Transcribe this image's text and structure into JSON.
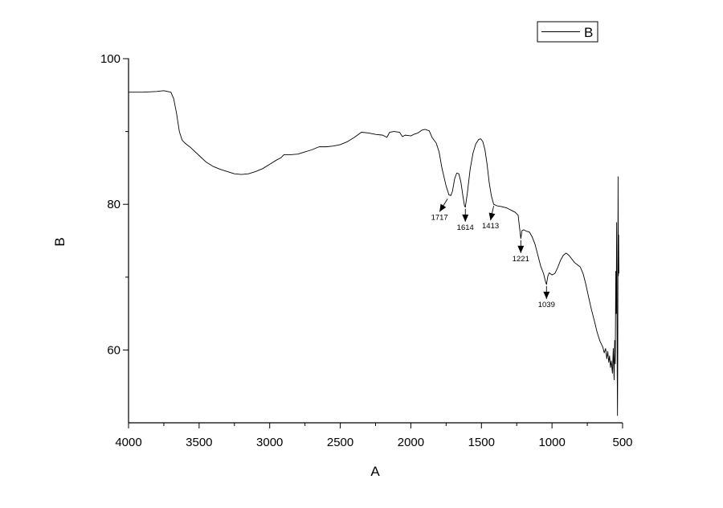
{
  "chart_data": {
    "type": "line",
    "title": "",
    "xlabel": "A",
    "ylabel": "B",
    "xlim": [
      4000,
      500
    ],
    "ylim": [
      50,
      100
    ],
    "x_reversed": true,
    "grid": false,
    "legend_position": "top-right",
    "x_ticks": [
      4000,
      3500,
      3000,
      2500,
      2000,
      1500,
      1000,
      500
    ],
    "y_ticks": [
      60,
      80,
      100
    ],
    "series": [
      {
        "name": "B",
        "color": "#000000",
        "points": [
          [
            4000,
            95.4
          ],
          [
            3900,
            95.4
          ],
          [
            3800,
            95.5
          ],
          [
            3750,
            95.6
          ],
          [
            3700,
            95.4
          ],
          [
            3680,
            94.5
          ],
          [
            3660,
            92.5
          ],
          [
            3640,
            90.0
          ],
          [
            3620,
            88.8
          ],
          [
            3600,
            88.4
          ],
          [
            3560,
            87.8
          ],
          [
            3500,
            86.7
          ],
          [
            3450,
            85.8
          ],
          [
            3400,
            85.2
          ],
          [
            3350,
            84.8
          ],
          [
            3300,
            84.5
          ],
          [
            3250,
            84.2
          ],
          [
            3200,
            84.1
          ],
          [
            3150,
            84.2
          ],
          [
            3100,
            84.5
          ],
          [
            3050,
            84.9
          ],
          [
            3000,
            85.5
          ],
          [
            2950,
            86.1
          ],
          [
            2920,
            86.4
          ],
          [
            2900,
            86.8
          ],
          [
            2860,
            86.8
          ],
          [
            2800,
            86.9
          ],
          [
            2750,
            87.2
          ],
          [
            2700,
            87.5
          ],
          [
            2650,
            87.9
          ],
          [
            2600,
            87.9
          ],
          [
            2550,
            88.0
          ],
          [
            2500,
            88.2
          ],
          [
            2450,
            88.6
          ],
          [
            2400,
            89.2
          ],
          [
            2350,
            89.9
          ],
          [
            2300,
            89.8
          ],
          [
            2250,
            89.6
          ],
          [
            2200,
            89.5
          ],
          [
            2170,
            89.2
          ],
          [
            2150,
            89.9
          ],
          [
            2120,
            90.0
          ],
          [
            2080,
            89.9
          ],
          [
            2060,
            89.3
          ],
          [
            2040,
            89.5
          ],
          [
            2000,
            89.4
          ],
          [
            1980,
            89.6
          ],
          [
            1950,
            89.8
          ],
          [
            1920,
            90.2
          ],
          [
            1900,
            90.3
          ],
          [
            1870,
            90.1
          ],
          [
            1850,
            89.2
          ],
          [
            1820,
            88.4
          ],
          [
            1800,
            87.2
          ],
          [
            1780,
            85.0
          ],
          [
            1750,
            82.5
          ],
          [
            1730,
            81.3
          ],
          [
            1717,
            81.2
          ],
          [
            1705,
            81.8
          ],
          [
            1690,
            83.5
          ],
          [
            1675,
            84.3
          ],
          [
            1660,
            84.2
          ],
          [
            1645,
            83.0
          ],
          [
            1630,
            81.0
          ],
          [
            1620,
            79.8
          ],
          [
            1614,
            79.6
          ],
          [
            1600,
            81.5
          ],
          [
            1580,
            84.8
          ],
          [
            1560,
            87.0
          ],
          [
            1540,
            88.3
          ],
          [
            1520,
            88.9
          ],
          [
            1505,
            89.0
          ],
          [
            1490,
            88.6
          ],
          [
            1475,
            87.5
          ],
          [
            1460,
            85.5
          ],
          [
            1445,
            83.0
          ],
          [
            1430,
            81.2
          ],
          [
            1413,
            80.0
          ],
          [
            1390,
            79.8
          ],
          [
            1360,
            79.7
          ],
          [
            1320,
            79.5
          ],
          [
            1290,
            79.2
          ],
          [
            1260,
            78.9
          ],
          [
            1240,
            78.5
          ],
          [
            1230,
            76.8
          ],
          [
            1221,
            75.3
          ],
          [
            1212,
            76.4
          ],
          [
            1200,
            76.5
          ],
          [
            1180,
            76.3
          ],
          [
            1160,
            76.2
          ],
          [
            1140,
            75.5
          ],
          [
            1120,
            74.5
          ],
          [
            1100,
            73.0
          ],
          [
            1080,
            71.5
          ],
          [
            1060,
            70.5
          ],
          [
            1045,
            69.3
          ],
          [
            1039,
            69.0
          ],
          [
            1030,
            70.1
          ],
          [
            1020,
            70.6
          ],
          [
            1000,
            70.3
          ],
          [
            980,
            70.5
          ],
          [
            960,
            71.3
          ],
          [
            940,
            72.3
          ],
          [
            920,
            73.0
          ],
          [
            900,
            73.3
          ],
          [
            880,
            73.0
          ],
          [
            860,
            72.5
          ],
          [
            840,
            72.0
          ],
          [
            820,
            71.7
          ],
          [
            800,
            71.4
          ],
          [
            780,
            70.5
          ],
          [
            760,
            69.0
          ],
          [
            740,
            67.2
          ],
          [
            720,
            65.5
          ],
          [
            700,
            64.0
          ],
          [
            680,
            62.4
          ],
          [
            660,
            61.2
          ],
          [
            640,
            60.4
          ],
          [
            630,
            59.6
          ],
          [
            620,
            60.2
          ],
          [
            612,
            58.8
          ],
          [
            605,
            59.8
          ],
          [
            598,
            58.3
          ],
          [
            592,
            59.2
          ],
          [
            586,
            57.6
          ],
          [
            580,
            58.5
          ],
          [
            572,
            56.8
          ],
          [
            566,
            60.2
          ],
          [
            560,
            55.9
          ],
          [
            556,
            61.3
          ],
          [
            552,
            58.1
          ],
          [
            548,
            70.8
          ],
          [
            545,
            65.0
          ],
          [
            542,
            77.5
          ],
          [
            540,
            69.5
          ],
          [
            538,
            57.0
          ],
          [
            536,
            51.0
          ],
          [
            534,
            60.0
          ],
          [
            532,
            83.8
          ],
          [
            530,
            70.2
          ],
          [
            528,
            75.8
          ],
          [
            526,
            70.5
          ]
        ]
      }
    ],
    "annotations": [
      {
        "label": "1717",
        "target": [
          1717,
          81.2
        ]
      },
      {
        "label": "1614",
        "target": [
          1614,
          79.6
        ]
      },
      {
        "label": "1413",
        "target": [
          1413,
          80.0
        ]
      },
      {
        "label": "1221",
        "target": [
          1221,
          75.3
        ]
      },
      {
        "label": "1039",
        "target": [
          1039,
          69.0
        ]
      }
    ]
  }
}
